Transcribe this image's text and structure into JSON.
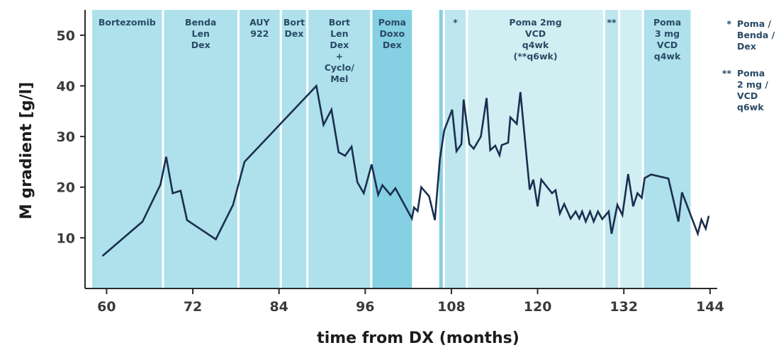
{
  "chart_data": {
    "type": "line",
    "xlabel": "time from DX (months)",
    "ylabel": "M gradient [g/l]",
    "xticks": [
      60,
      72,
      84,
      96,
      108,
      120,
      132,
      144
    ],
    "yticks": [
      10,
      20,
      30,
      40,
      50
    ],
    "xlim": [
      57,
      145
    ],
    "ylim": [
      0,
      55
    ],
    "line_color": "#1b2e4f",
    "treatment_bands": [
      {
        "start": 58.0,
        "end": 67.7,
        "label": [
          "Bortezomib"
        ],
        "color": "#aee1ec"
      },
      {
        "start": 68.0,
        "end": 78.2,
        "label": [
          "Benda",
          "Len",
          "Dex"
        ],
        "color": "#aee1ec"
      },
      {
        "start": 78.5,
        "end": 84.1,
        "label": [
          "AUY",
          "922"
        ],
        "color": "#aee1ec"
      },
      {
        "start": 84.4,
        "end": 87.8,
        "label": [
          "Bort",
          "Dex"
        ],
        "color": "#aee1ec"
      },
      {
        "start": 88.1,
        "end": 96.7,
        "label": [
          "Bort",
          "Len",
          "Dex",
          "+",
          "Cyclo/",
          "Mel"
        ],
        "color": "#aee1ec"
      },
      {
        "start": 97.0,
        "end": 102.5,
        "label": [
          "Poma",
          "Doxo",
          "Dex"
        ],
        "color": "#85d0e2"
      },
      {
        "start": 106.3,
        "end": 106.8,
        "label": [],
        "color": "#85d0e2"
      },
      {
        "start": 107.1,
        "end": 110.0,
        "label": [
          "*"
        ],
        "color": "#bde6ef"
      },
      {
        "start": 110.3,
        "end": 129.1,
        "label": [
          "Poma 2mg",
          "VCD",
          "q4wk",
          "(**q6wk)"
        ],
        "color": "#d1eff3"
      },
      {
        "start": 129.4,
        "end": 131.2,
        "label": [
          "**"
        ],
        "color": "#bde6ef"
      },
      {
        "start": 131.5,
        "end": 134.5,
        "label": [],
        "color": "#d1eff3"
      },
      {
        "start": 134.8,
        "end": 141.3,
        "label": [
          "Poma",
          "3 mg",
          "VCD",
          "q4wk"
        ],
        "color": "#aee1ec"
      }
    ],
    "legend": [
      {
        "marker": "*",
        "text": [
          "Poma /",
          "Benda /",
          "Dex"
        ]
      },
      {
        "marker": "**",
        "text": [
          "Poma",
          "2 mg /",
          "VCD",
          "q6wk"
        ]
      }
    ],
    "series": [
      {
        "points": [
          [
            59.5,
            6.5
          ],
          [
            65.0,
            13.2
          ],
          [
            67.5,
            20.5
          ],
          [
            68.3,
            26.0
          ],
          [
            69.2,
            18.8
          ],
          [
            70.3,
            19.3
          ],
          [
            71.2,
            13.5
          ],
          [
            75.2,
            9.7
          ],
          [
            77.6,
            16.5
          ],
          [
            79.2,
            25.0
          ],
          [
            89.2,
            40.0
          ],
          [
            90.2,
            32.3
          ],
          [
            91.3,
            35.3
          ],
          [
            92.3,
            26.9
          ],
          [
            93.2,
            26.2
          ],
          [
            94.1,
            28.0
          ],
          [
            94.9,
            21.0
          ],
          [
            95.8,
            18.8
          ],
          [
            96.9,
            24.5
          ],
          [
            97.8,
            18.5
          ],
          [
            98.4,
            20.4
          ],
          [
            99.5,
            18.5
          ],
          [
            100.2,
            19.8
          ],
          [
            102.5,
            13.8
          ],
          [
            102.8,
            16.0
          ],
          [
            103.3,
            15.3
          ],
          [
            103.8,
            20.0
          ],
          [
            104.9,
            18.2
          ],
          [
            105.7,
            13.5
          ],
          [
            106.4,
            25.6
          ],
          [
            107.0,
            31.2
          ],
          [
            108.1,
            35.3
          ],
          [
            108.7,
            27.1
          ],
          [
            109.4,
            28.5
          ],
          [
            109.7,
            37.3
          ],
          [
            110.5,
            28.5
          ],
          [
            111.1,
            27.6
          ],
          [
            112.1,
            30.0
          ],
          [
            112.9,
            37.6
          ],
          [
            113.4,
            27.3
          ],
          [
            114.1,
            28.2
          ],
          [
            114.7,
            26.3
          ],
          [
            115.0,
            28.3
          ],
          [
            115.9,
            28.8
          ],
          [
            116.2,
            33.8
          ],
          [
            117.1,
            32.5
          ],
          [
            117.6,
            38.8
          ],
          [
            118.9,
            19.5
          ],
          [
            119.4,
            21.5
          ],
          [
            120.0,
            16.2
          ],
          [
            120.5,
            21.5
          ],
          [
            122.0,
            18.8
          ],
          [
            122.5,
            19.4
          ],
          [
            123.1,
            14.8
          ],
          [
            123.7,
            16.7
          ],
          [
            124.6,
            13.8
          ],
          [
            125.3,
            15.2
          ],
          [
            125.8,
            13.8
          ],
          [
            126.2,
            15.2
          ],
          [
            126.7,
            13.2
          ],
          [
            127.3,
            15.2
          ],
          [
            127.8,
            13.2
          ],
          [
            128.4,
            15.2
          ],
          [
            129.0,
            13.7
          ],
          [
            129.9,
            15.2
          ],
          [
            130.3,
            10.8
          ],
          [
            131.1,
            16.5
          ],
          [
            131.8,
            14.5
          ],
          [
            132.6,
            22.6
          ],
          [
            133.3,
            16.2
          ],
          [
            133.9,
            18.8
          ],
          [
            134.5,
            17.9
          ],
          [
            134.9,
            21.8
          ],
          [
            135.8,
            22.5
          ],
          [
            138.2,
            21.7
          ],
          [
            139.6,
            13.2
          ],
          [
            140.1,
            19.0
          ],
          [
            142.3,
            10.8
          ],
          [
            142.8,
            13.6
          ],
          [
            143.4,
            11.8
          ],
          [
            143.8,
            14.2
          ]
        ]
      }
    ]
  }
}
